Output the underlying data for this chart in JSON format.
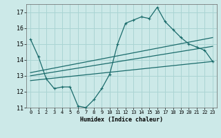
{
  "title": "",
  "xlabel": "Humidex (Indice chaleur)",
  "bg_color": "#cce9e8",
  "grid_color": "#aad4d3",
  "line_color": "#1a6b6b",
  "xlim": [
    -0.5,
    23.5
  ],
  "ylim": [
    11,
    17.5
  ],
  "yticks": [
    11,
    12,
    13,
    14,
    15,
    16,
    17
  ],
  "xticks": [
    0,
    1,
    2,
    3,
    4,
    5,
    6,
    7,
    8,
    9,
    10,
    11,
    12,
    13,
    14,
    15,
    16,
    17,
    18,
    19,
    20,
    21,
    22,
    23
  ],
  "main_line": {
    "x": [
      0,
      1,
      2,
      3,
      4,
      5,
      6,
      7,
      8,
      9,
      10,
      11,
      12,
      13,
      14,
      15,
      16,
      17,
      18,
      19,
      20,
      21,
      22,
      23
    ],
    "y": [
      15.3,
      14.2,
      12.8,
      12.2,
      12.3,
      12.3,
      11.1,
      11.0,
      11.5,
      12.2,
      13.1,
      15.0,
      16.3,
      16.5,
      16.7,
      16.6,
      17.3,
      16.4,
      15.9,
      15.4,
      15.0,
      14.8,
      14.6,
      13.9
    ]
  },
  "straight_lines": [
    {
      "x": [
        0,
        23
      ],
      "y": [
        13.2,
        15.4
      ]
    },
    {
      "x": [
        0,
        23
      ],
      "y": [
        13.0,
        14.85
      ]
    },
    {
      "x": [
        0,
        23
      ],
      "y": [
        12.7,
        13.9
      ]
    }
  ]
}
